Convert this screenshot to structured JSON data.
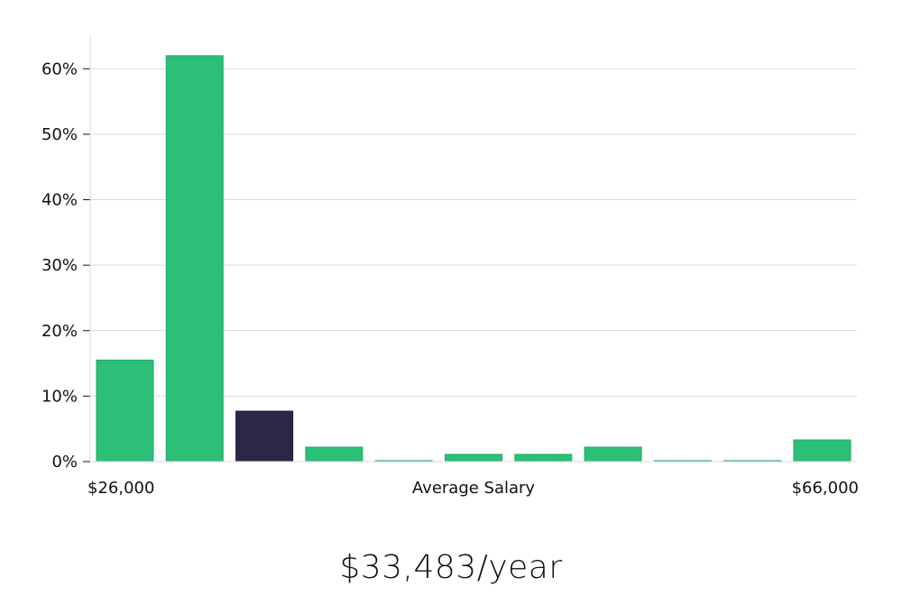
{
  "chart_data": {
    "type": "bar",
    "values": [
      15.5,
      62.0,
      7.7,
      2.2,
      0.1,
      1.1,
      1.1,
      2.2,
      0.1,
      0.1,
      3.3
    ],
    "highlight_index": 2,
    "xlabel": "Average Salary",
    "x_min_label": "$26,000",
    "x_max_label": "$66,000",
    "y_ticks": [
      0,
      10,
      20,
      30,
      40,
      50,
      60
    ],
    "y_tick_labels": [
      "0%",
      "10%",
      "20%",
      "30%",
      "40%",
      "50%",
      "60%"
    ],
    "ylim": [
      0,
      65
    ],
    "grid": true,
    "colors": {
      "bar": "#2bbf77",
      "highlight": "#2a2748",
      "grid": "#d9d9d9",
      "axis": "#d9d9d9"
    }
  },
  "summary": {
    "salary": "$33,483/year"
  }
}
